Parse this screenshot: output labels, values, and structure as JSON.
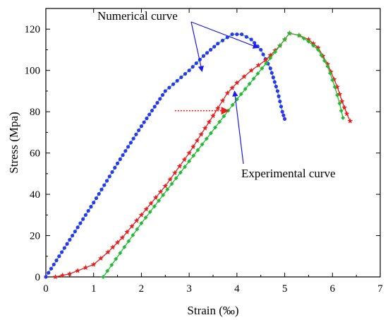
{
  "chart_data": {
    "type": "line",
    "xlabel": "Strain (‰)",
    "ylabel": "Stress (Mpa)",
    "xlim": [
      0,
      7
    ],
    "ylim": [
      0,
      130
    ],
    "xticks": [
      "0",
      "1",
      "2",
      "3",
      "4",
      "5",
      "6",
      "7"
    ],
    "yticks": [
      "0",
      "20",
      "40",
      "60",
      "80",
      "100",
      "120"
    ],
    "grid": false,
    "annotations": {
      "numerical": "Numerical curve",
      "experimental": "Experimental curve"
    },
    "colors": {
      "blue_series": "#3333ee",
      "cyan_line": "#00cccc",
      "red_series": "#e52020",
      "green_series": "#22bb33",
      "arrow": "#1a1aee",
      "shift_arrow": "#e52020"
    },
    "series": [
      {
        "marker": "circle",
        "color": "#3333ee",
        "line_color": "#00cccc",
        "points": [
          [
            0,
            0
          ],
          [
            0.5,
            18
          ],
          [
            1,
            36
          ],
          [
            1.5,
            55
          ],
          [
            2,
            73
          ],
          [
            2.5,
            90
          ],
          [
            3,
            100
          ],
          [
            3.3,
            107
          ],
          [
            3.6,
            113
          ],
          [
            3.9,
            117.5
          ],
          [
            4.1,
            117.5
          ],
          [
            4.3,
            115
          ],
          [
            4.5,
            110
          ],
          [
            4.7,
            101
          ],
          [
            4.85,
            90
          ],
          [
            4.95,
            80
          ],
          [
            5.0,
            76.5
          ]
        ]
      },
      {
        "marker": "star",
        "color": "#e52020",
        "line_color": "#e52020",
        "points": [
          [
            0.2,
            0
          ],
          [
            0.5,
            1.5
          ],
          [
            1,
            6
          ],
          [
            1.3,
            12
          ],
          [
            1.6,
            19
          ],
          [
            2,
            30
          ],
          [
            2.5,
            44
          ],
          [
            3,
            60
          ],
          [
            3.5,
            78
          ],
          [
            3.8,
            89
          ],
          [
            4,
            94
          ],
          [
            4.3,
            100
          ],
          [
            4.6,
            105
          ],
          [
            4.9,
            112
          ],
          [
            5.1,
            118
          ],
          [
            5.3,
            117
          ],
          [
            5.5,
            115
          ],
          [
            5.7,
            111
          ],
          [
            5.9,
            103
          ],
          [
            6.1,
            92
          ],
          [
            6.2,
            85
          ],
          [
            6.3,
            79
          ],
          [
            6.37,
            75.5
          ]
        ]
      },
      {
        "marker": "diamond",
        "color": "#22bb33",
        "line_color": "#22bb33",
        "points": [
          [
            1.2,
            0
          ],
          [
            2,
            26
          ],
          [
            3,
            56
          ],
          [
            4,
            86
          ],
          [
            4.7,
            106
          ],
          [
            5.1,
            118
          ],
          [
            5.3,
            117
          ],
          [
            5.5,
            114
          ],
          [
            5.7,
            110
          ],
          [
            5.9,
            102
          ],
          [
            6.05,
            92
          ],
          [
            6.15,
            84
          ],
          [
            6.22,
            77
          ]
        ]
      }
    ]
  }
}
